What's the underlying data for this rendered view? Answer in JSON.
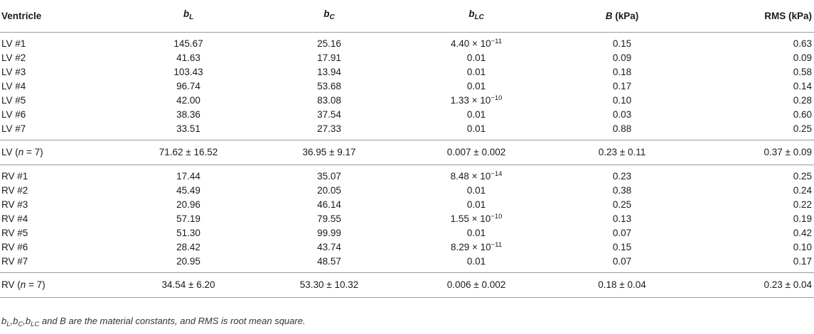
{
  "table": {
    "headers": [
      {
        "symbol": "Ventricle",
        "sub": "",
        "unit": ""
      },
      {
        "symbol": "b",
        "sub": "L",
        "unit": ""
      },
      {
        "symbol": "b",
        "sub": "C",
        "unit": ""
      },
      {
        "symbol": "b",
        "sub": "LC",
        "unit": ""
      },
      {
        "symbol": "B",
        "sub": "",
        "unit": " (kPa)"
      },
      {
        "symbol": "",
        "sub": "",
        "unit": "RMS (kPa)"
      }
    ],
    "groups": [
      {
        "rows": [
          {
            "name": "LV #1",
            "bL": "145.67",
            "bC": "25.16",
            "bLC": {
              "mant": "4.40 × 10",
              "exp": "−11"
            },
            "B": "0.15",
            "RMS": "0.63"
          },
          {
            "name": "LV #2",
            "bL": "41.63",
            "bC": "17.91",
            "bLC": {
              "mant": "0.01",
              "exp": ""
            },
            "B": "0.09",
            "RMS": "0.09"
          },
          {
            "name": "LV #3",
            "bL": "103.43",
            "bC": "13.94",
            "bLC": {
              "mant": "0.01",
              "exp": ""
            },
            "B": "0.18",
            "RMS": "0.58"
          },
          {
            "name": "LV #4",
            "bL": "96.74",
            "bC": "53.68",
            "bLC": {
              "mant": "0.01",
              "exp": ""
            },
            "B": "0.17",
            "RMS": "0.14"
          },
          {
            "name": "LV #5",
            "bL": "42.00",
            "bC": "83.08",
            "bLC": {
              "mant": "1.33 × 10",
              "exp": "−10"
            },
            "B": "0.10",
            "RMS": "0.28"
          },
          {
            "name": "LV #6",
            "bL": "38.36",
            "bC": "37.54",
            "bLC": {
              "mant": "0.01",
              "exp": ""
            },
            "B": "0.03",
            "RMS": "0.60"
          },
          {
            "name": "LV #7",
            "bL": "33.51",
            "bC": "27.33",
            "bLC": {
              "mant": "0.01",
              "exp": ""
            },
            "B": "0.88",
            "RMS": "0.25"
          }
        ],
        "summary": {
          "prefix": "LV (",
          "n": "n",
          "suffix": " = 7)",
          "bL": "71.62 ± 16.52",
          "bC": "36.95 ± 9.17",
          "bLC": "0.007 ± 0.002",
          "B": "0.23 ± 0.11",
          "RMS": "0.37 ± 0.09"
        }
      },
      {
        "rows": [
          {
            "name": "RV #1",
            "bL": "17.44",
            "bC": "35.07",
            "bLC": {
              "mant": "8.48 × 10",
              "exp": "−14"
            },
            "B": "0.23",
            "RMS": "0.25"
          },
          {
            "name": "RV #2",
            "bL": "45.49",
            "bC": "20.05",
            "bLC": {
              "mant": "0.01",
              "exp": ""
            },
            "B": "0.38",
            "RMS": "0.24"
          },
          {
            "name": "RV #3",
            "bL": "20.96",
            "bC": "46.14",
            "bLC": {
              "mant": "0.01",
              "exp": ""
            },
            "B": "0.25",
            "RMS": "0.22"
          },
          {
            "name": "RV #4",
            "bL": "57.19",
            "bC": "79.55",
            "bLC": {
              "mant": "1.55 × 10",
              "exp": "−10"
            },
            "B": "0.13",
            "RMS": "0.19"
          },
          {
            "name": "RV #5",
            "bL": "51.30",
            "bC": "99.99",
            "bLC": {
              "mant": "0.01",
              "exp": ""
            },
            "B": "0.07",
            "RMS": "0.42"
          },
          {
            "name": "RV #6",
            "bL": "28.42",
            "bC": "43.74",
            "bLC": {
              "mant": "8.29 × 10",
              "exp": "−11"
            },
            "B": "0.15",
            "RMS": "0.10"
          },
          {
            "name": "RV #7",
            "bL": "20.95",
            "bC": "48.57",
            "bLC": {
              "mant": "0.01",
              "exp": ""
            },
            "B": "0.07",
            "RMS": "0.17"
          }
        ],
        "summary": {
          "prefix": "RV (",
          "n": "n",
          "suffix": " = 7)",
          "bL": "34.54 ± 6.20",
          "bC": "53.30 ± 10.32",
          "bLC": "0.006 ± 0.002",
          "B": "0.18 ± 0.04",
          "RMS": "0.23 ± 0.04"
        }
      }
    ]
  },
  "footnote": {
    "parts": [
      {
        "t": "b",
        "s": "L"
      },
      {
        "t": ",b",
        "s": "C"
      },
      {
        "t": ",b",
        "s": "LC"
      }
    ],
    "text": " and B are the material constants, and RMS is root mean square."
  }
}
